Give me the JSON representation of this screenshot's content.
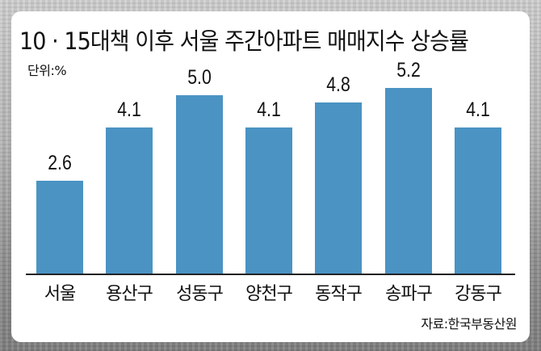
{
  "title": "10 · 15대책 이후 서울 주간아파트 매매지수 상승률",
  "unit_label": "단위:%",
  "source_label": "자료:한국부동산원",
  "colors": {
    "bar": "#4a93c3",
    "card": "#ffffff",
    "axis": "#222222"
  },
  "chart_data": {
    "type": "bar",
    "title": "10 · 15대책 이후 서울 주간아파트 매매지수 상승률",
    "unit": "%",
    "categories": [
      "서울",
      "용산구",
      "성동구",
      "양천구",
      "동작구",
      "송파구",
      "강동구"
    ],
    "values": [
      2.6,
      4.1,
      5.0,
      4.1,
      4.8,
      5.2,
      4.1
    ],
    "value_labels": [
      "2.6",
      "4.1",
      "5.0",
      "4.1",
      "4.8",
      "5.2",
      "4.1"
    ],
    "xlabel": "",
    "ylabel": "",
    "ylim": [
      0,
      5.2
    ],
    "grid": false,
    "legend": null,
    "source": "자료:한국부동산원"
  }
}
